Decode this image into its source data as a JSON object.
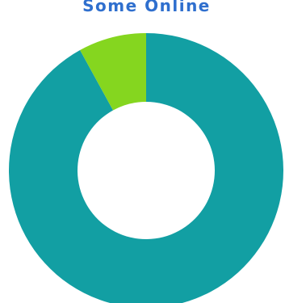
{
  "chart_data": {
    "type": "pie",
    "title": "Some Online",
    "title_color": "#2f6fce",
    "donut": true,
    "categories": [
      "",
      ""
    ],
    "values": [
      92,
      8
    ],
    "colors": [
      "#129fa3",
      "#85d61f"
    ],
    "start_angle_deg": 0,
    "direction": "clockwise",
    "legend": "none"
  }
}
